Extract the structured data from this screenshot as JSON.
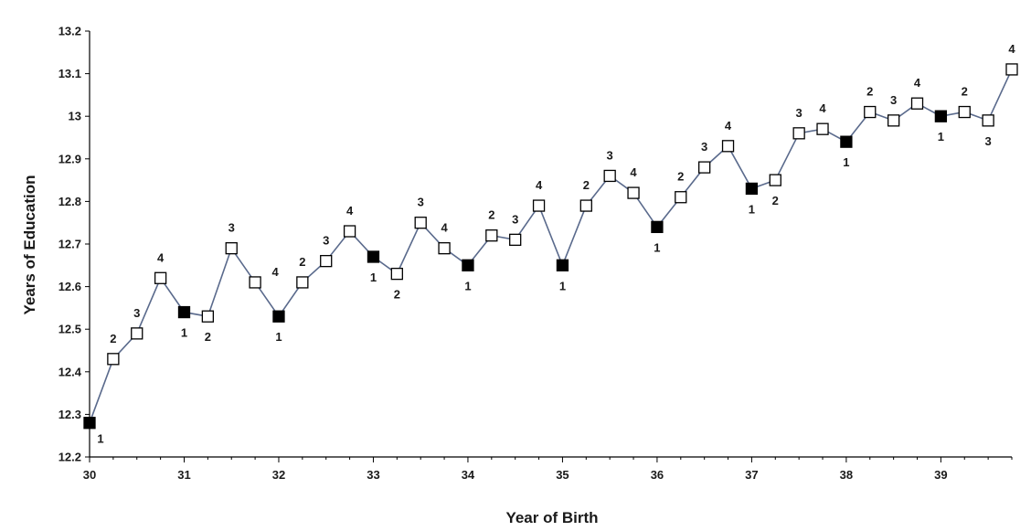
{
  "chart_data": {
    "type": "line",
    "xlabel": "Year of Birth",
    "ylabel": "Years of Education",
    "xlim": [
      30,
      39.75
    ],
    "ylim": [
      12.2,
      13.2
    ],
    "x_ticks": [
      "30",
      "31",
      "32",
      "33",
      "34",
      "35",
      "36",
      "37",
      "38",
      "39"
    ],
    "y_ticks": [
      "12.2",
      "12.3",
      "12.4",
      "12.5",
      "12.6",
      "12.7",
      "12.8",
      "12.9",
      "13",
      "13.1",
      "13.2"
    ],
    "grid": false,
    "colors": {
      "line": "#5a6a8c",
      "marker_filled": "#000000",
      "marker_open": "#ffffff",
      "axis": "#000000"
    },
    "points": [
      {
        "x": 30.0,
        "y": 12.28,
        "label": "1",
        "filled": true,
        "label_pos": "below-right"
      },
      {
        "x": 30.25,
        "y": 12.43,
        "label": "2",
        "filled": false,
        "label_pos": "above"
      },
      {
        "x": 30.5,
        "y": 12.49,
        "label": "3",
        "filled": false,
        "label_pos": "above"
      },
      {
        "x": 30.75,
        "y": 12.62,
        "label": "4",
        "filled": false,
        "label_pos": "above"
      },
      {
        "x": 31.0,
        "y": 12.54,
        "label": "1",
        "filled": true,
        "label_pos": "below"
      },
      {
        "x": 31.25,
        "y": 12.53,
        "label": "2",
        "filled": false,
        "label_pos": "below"
      },
      {
        "x": 31.5,
        "y": 12.69,
        "label": "3",
        "filled": false,
        "label_pos": "above"
      },
      {
        "x": 31.75,
        "y": 12.61,
        "label": "4",
        "filled": false,
        "label_pos": "above-right"
      },
      {
        "x": 32.0,
        "y": 12.53,
        "label": "1",
        "filled": true,
        "label_pos": "below"
      },
      {
        "x": 32.25,
        "y": 12.61,
        "label": "2",
        "filled": false,
        "label_pos": "above"
      },
      {
        "x": 32.5,
        "y": 12.66,
        "label": "3",
        "filled": false,
        "label_pos": "above"
      },
      {
        "x": 32.75,
        "y": 12.73,
        "label": "4",
        "filled": false,
        "label_pos": "above"
      },
      {
        "x": 33.0,
        "y": 12.67,
        "label": "1",
        "filled": true,
        "label_pos": "below"
      },
      {
        "x": 33.25,
        "y": 12.63,
        "label": "2",
        "filled": false,
        "label_pos": "below"
      },
      {
        "x": 33.5,
        "y": 12.75,
        "label": "3",
        "filled": false,
        "label_pos": "above"
      },
      {
        "x": 33.75,
        "y": 12.69,
        "label": "4",
        "filled": false,
        "label_pos": "above"
      },
      {
        "x": 34.0,
        "y": 12.65,
        "label": "1",
        "filled": true,
        "label_pos": "below"
      },
      {
        "x": 34.25,
        "y": 12.72,
        "label": "2",
        "filled": false,
        "label_pos": "above"
      },
      {
        "x": 34.5,
        "y": 12.71,
        "label": "3",
        "filled": false,
        "label_pos": "above"
      },
      {
        "x": 34.75,
        "y": 12.79,
        "label": "4",
        "filled": false,
        "label_pos": "above"
      },
      {
        "x": 35.0,
        "y": 12.65,
        "label": "1",
        "filled": true,
        "label_pos": "below"
      },
      {
        "x": 35.25,
        "y": 12.79,
        "label": "2",
        "filled": false,
        "label_pos": "above"
      },
      {
        "x": 35.5,
        "y": 12.86,
        "label": "3",
        "filled": false,
        "label_pos": "above"
      },
      {
        "x": 35.75,
        "y": 12.82,
        "label": "4",
        "filled": false,
        "label_pos": "above"
      },
      {
        "x": 36.0,
        "y": 12.74,
        "label": "1",
        "filled": true,
        "label_pos": "below"
      },
      {
        "x": 36.25,
        "y": 12.81,
        "label": "2",
        "filled": false,
        "label_pos": "above"
      },
      {
        "x": 36.5,
        "y": 12.88,
        "label": "3",
        "filled": false,
        "label_pos": "above"
      },
      {
        "x": 36.75,
        "y": 12.93,
        "label": "4",
        "filled": false,
        "label_pos": "above"
      },
      {
        "x": 37.0,
        "y": 12.83,
        "label": "1",
        "filled": true,
        "label_pos": "below"
      },
      {
        "x": 37.25,
        "y": 12.85,
        "label": "2",
        "filled": false,
        "label_pos": "below"
      },
      {
        "x": 37.5,
        "y": 12.96,
        "label": "3",
        "filled": false,
        "label_pos": "above"
      },
      {
        "x": 37.75,
        "y": 12.97,
        "label": "4",
        "filled": false,
        "label_pos": "above"
      },
      {
        "x": 38.0,
        "y": 12.94,
        "label": "1",
        "filled": true,
        "label_pos": "below"
      },
      {
        "x": 38.25,
        "y": 13.01,
        "label": "2",
        "filled": false,
        "label_pos": "above"
      },
      {
        "x": 38.5,
        "y": 12.99,
        "label": "3",
        "filled": false,
        "label_pos": "above"
      },
      {
        "x": 38.75,
        "y": 13.03,
        "label": "4",
        "filled": false,
        "label_pos": "above"
      },
      {
        "x": 39.0,
        "y": 13.0,
        "label": "1",
        "filled": true,
        "label_pos": "below"
      },
      {
        "x": 39.25,
        "y": 13.01,
        "label": "2",
        "filled": false,
        "label_pos": "above"
      },
      {
        "x": 39.5,
        "y": 12.99,
        "label": "3",
        "filled": false,
        "label_pos": "below"
      },
      {
        "x": 39.75,
        "y": 13.11,
        "label": "4",
        "filled": false,
        "label_pos": "above"
      }
    ]
  }
}
